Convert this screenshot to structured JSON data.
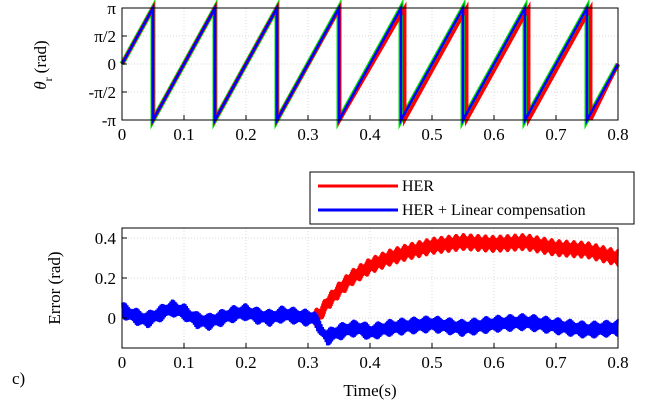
{
  "panel_label": "c)",
  "chart_data": [
    {
      "type": "line",
      "ylabel_symbol": "θ",
      "ylabel_subscript": "r",
      "ylabel_unit": "(rad)",
      "xlim": [
        0,
        0.8
      ],
      "ylim": [
        -3.1416,
        3.1416
      ],
      "x_ticks": [
        "0",
        "0.1",
        "0.2",
        "0.3",
        "0.4",
        "0.5",
        "0.6",
        "0.7",
        "0.8"
      ],
      "y_ticks": [
        "π",
        "π/2",
        "0",
        "-π/2",
        "-π"
      ],
      "y_tick_values": [
        3.1416,
        1.5708,
        0,
        -1.5708,
        -3.1416
      ],
      "grid": true,
      "series": [
        {
          "color": "#00e000",
          "x_start": 0.0,
          "wrap_times": [
            0.05,
            0.15,
            0.25,
            0.35,
            0.45,
            0.55,
            0.65,
            0.75
          ],
          "period": 0.1,
          "phase_lag": 0.0
        },
        {
          "color": "#ff0000",
          "x_start": 0.0,
          "wrap_times": [
            0.05,
            0.15,
            0.25,
            0.35,
            0.45,
            0.55,
            0.65,
            0.75
          ],
          "period": 0.1,
          "phase_lag": 0.3
        },
        {
          "color": "#0000ff",
          "x_start": 0.0,
          "wrap_times": [
            0.05,
            0.15,
            0.25,
            0.35,
            0.45,
            0.55,
            0.65,
            0.75
          ],
          "period": 0.1,
          "phase_lag": 0.0
        }
      ]
    },
    {
      "type": "line",
      "xlabel": "Time(s)",
      "ylabel": "Error (rad)",
      "xlim": [
        0,
        0.8
      ],
      "ylim": [
        -0.15,
        0.45
      ],
      "x_ticks": [
        "0",
        "0.1",
        "0.2",
        "0.3",
        "0.4",
        "0.5",
        "0.6",
        "0.7",
        "0.8"
      ],
      "y_ticks": [
        "0.4",
        "0.2",
        "0"
      ],
      "y_tick_values": [
        0.4,
        0.2,
        0
      ],
      "grid": true,
      "legend_position": "top-right, above plot",
      "series": [
        {
          "name": "HER",
          "color": "#ff0000",
          "x": [
            0.31,
            0.32,
            0.33,
            0.35,
            0.37,
            0.4,
            0.43,
            0.46,
            0.5,
            0.55,
            0.6,
            0.65,
            0.7,
            0.75,
            0.8
          ],
          "y": [
            0.0,
            0.02,
            0.07,
            0.14,
            0.2,
            0.26,
            0.3,
            0.33,
            0.36,
            0.38,
            0.37,
            0.38,
            0.35,
            0.34,
            0.3
          ],
          "band": 0.045
        },
        {
          "name": "HER + Linear compensation",
          "color": "#0000ff",
          "x": [
            0.0,
            0.02,
            0.04,
            0.06,
            0.08,
            0.1,
            0.12,
            0.14,
            0.16,
            0.18,
            0.2,
            0.22,
            0.24,
            0.26,
            0.28,
            0.3,
            0.31,
            0.32,
            0.33,
            0.34,
            0.36,
            0.38,
            0.4,
            0.43,
            0.46,
            0.5,
            0.55,
            0.6,
            0.65,
            0.7,
            0.75,
            0.8
          ],
          "y": [
            0.04,
            0.01,
            -0.01,
            0.02,
            0.05,
            0.03,
            -0.01,
            -0.02,
            0.0,
            0.02,
            0.03,
            0.01,
            0.0,
            0.02,
            0.01,
            0.0,
            0.0,
            -0.05,
            -0.1,
            -0.08,
            -0.06,
            -0.05,
            -0.07,
            -0.05,
            -0.04,
            -0.03,
            -0.05,
            -0.03,
            -0.02,
            -0.04,
            -0.06,
            -0.05
          ],
          "band": 0.045
        }
      ]
    }
  ]
}
